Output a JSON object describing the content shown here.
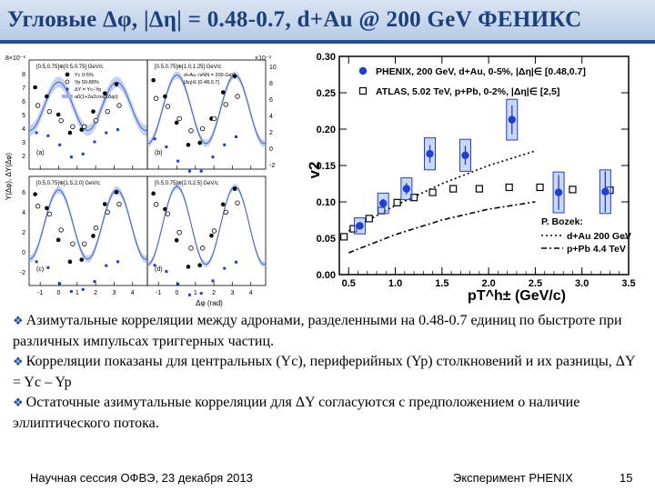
{
  "slide": {
    "title": "Угловые Δφ, |Δη| = 0.48-0.7, d+Au @ 200 GeV ФЕНИКС",
    "bullets": [
      "Азимутальные корреляции между адронами, разделенными на 0.48-0.7 единиц по быстроте при различных импульсах триггерных частиц.",
      "Корреляции показаны для центральных (Yc), периферийных (Yp) столкновений и их разницы, ΔY = Yc – Yp",
      "Остаточные азимутальные корреляции для ΔY согласуются с предположением о наличие эллиптического потока."
    ],
    "footer": {
      "left": "Научная сессия ОФВЭ, 23 декабря 2013",
      "center": "Эксперимент PHENIX",
      "page": "15"
    }
  },
  "chart_data": [
    {
      "type": "scatter",
      "description_panel": "azimuthal correlations (a)-(d)",
      "xlabel": "Δφ (rad)",
      "ylabel": "Y(Δφ), ΔY(Δφ)",
      "y_scale_label": "8×10⁻³",
      "y_scale_label_right": "×10⁻³",
      "legend": [
        "Yc 0-5%",
        "Yp 50-88%",
        "ΔY = Yc−Yp",
        "a0(1+2a2cos(2Δφ))"
      ],
      "header_labels": [
        "[0.5,0.75]⊗[0.5,0.75] GeV/c",
        "[0.5,0.75]⊗[1.0,1.25] GeV/c",
        "[0.5,0.75]⊗[1.5,2.0] GeV/c",
        "[0.5,0.75]⊗[2.0,2.5] GeV/c"
      ],
      "panel_letters": [
        "(a)",
        "(b)",
        "(c)",
        "(d)"
      ],
      "extra_labels": [
        "d+Au √sNN = 200 GeV",
        "|Δη|∈ [0.48,0.7]"
      ],
      "x_ticks": [
        "-1",
        "0",
        "1",
        "2",
        "3",
        "4"
      ],
      "y_ticks_top_left": [
        "8",
        "7",
        "6",
        "5",
        "4",
        "3",
        "2"
      ],
      "y_ticks_bottom_left": [
        "6",
        "4",
        "2",
        "0",
        "-2"
      ],
      "y_ticks_right": [
        "10",
        "8",
        "6",
        "4",
        "2",
        "0",
        "-2"
      ],
      "subpanels": [
        {
          "id": "a",
          "yc": [
            5.0,
            4.7,
            4.1,
            3.5,
            3.6,
            4.2,
            4.8,
            5.1
          ],
          "yp": [
            4.4,
            4.2,
            3.9,
            3.7,
            3.7,
            3.9,
            4.2,
            4.4
          ]
        },
        {
          "id": "b",
          "yc": [
            7.8,
            7.0,
            5.7,
            4.6,
            4.7,
            5.9,
            7.2,
            8.0
          ],
          "yp": [
            6.9,
            6.5,
            5.9,
            5.3,
            5.4,
            5.9,
            6.6,
            7.0
          ]
        },
        {
          "id": "c",
          "yc": [
            4.6,
            3.9,
            2.3,
            1.2,
            1.3,
            2.5,
            4.1,
            4.7
          ],
          "yp": [
            4.0,
            3.6,
            2.8,
            2.1,
            2.1,
            2.9,
            3.7,
            4.1
          ]
        },
        {
          "id": "d",
          "yc": [
            6.5,
            5.5,
            3.5,
            1.8,
            1.9,
            3.8,
            5.8,
            6.8
          ],
          "yp": [
            5.8,
            5.2,
            4.0,
            3.0,
            3.0,
            4.1,
            5.3,
            5.9
          ]
        }
      ]
    },
    {
      "type": "scatter",
      "xlabel": "pT^h± (GeV/c)",
      "ylabel": "v2",
      "xlim": [
        0.4,
        3.5
      ],
      "ylim": [
        0.0,
        0.3
      ],
      "x_ticks": [
        "0.5",
        "1.0",
        "1.5",
        "2.0",
        "2.5",
        "3.0",
        "3.5"
      ],
      "y_ticks": [
        "0.00",
        "0.05",
        "0.10",
        "0.15",
        "0.20",
        "0.25",
        "0.30"
      ],
      "legend": [
        "PHENIX, 200 GeV, d+Au, 0-5%, |Δη|∈ [0.48,0.7]",
        "ATLAS, 5.02 TeV, p+Pb, 0-2%, |Δη|∈ [2,5]"
      ],
      "theory_title": "P. Bozek:",
      "theory_legend": [
        "d+Au 200 GeV",
        "p+Pb 4.4 TeV"
      ],
      "series": [
        {
          "name": "PHENIX, 200 GeV, d+Au, 0-5%, |Δη|∈ [0.48,0.7]",
          "marker": "filled-circle",
          "x": [
            0.62,
            0.87,
            1.12,
            1.37,
            1.75,
            2.25,
            2.75,
            3.25
          ],
          "y": [
            0.067,
            0.098,
            0.118,
            0.166,
            0.164,
            0.213,
            0.113,
            0.114
          ],
          "stat_err": [
            0.005,
            0.006,
            0.008,
            0.012,
            0.013,
            0.02,
            0.024,
            0.028
          ],
          "sys_err": [
            0.011,
            0.014,
            0.015,
            0.022,
            0.022,
            0.028,
            0.028,
            0.03
          ]
        },
        {
          "name": "ATLAS, 5.02 TeV, p+Pb, 0-2%, |Δη|∈ [2,5]",
          "marker": "open-square",
          "x": [
            0.45,
            0.55,
            0.72,
            0.85,
            1.02,
            1.2,
            1.4,
            1.62,
            1.9,
            2.22,
            2.55,
            2.9,
            3.3
          ],
          "y": [
            0.052,
            0.063,
            0.077,
            0.088,
            0.099,
            0.106,
            0.113,
            0.118,
            0.118,
            0.12,
            0.12,
            0.117,
            0.116
          ]
        },
        {
          "name": "d+Au 200 GeV",
          "style": "dotted",
          "x": [
            0.5,
            1.0,
            1.5,
            2.0,
            2.5
          ],
          "y": [
            0.06,
            0.095,
            0.125,
            0.15,
            0.17
          ]
        },
        {
          "name": "p+Pb 4.4 TeV",
          "style": "dash-dot",
          "x": [
            0.5,
            1.0,
            1.5,
            2.0,
            2.5
          ],
          "y": [
            0.03,
            0.055,
            0.075,
            0.09,
            0.1
          ]
        }
      ]
    }
  ],
  "colors": {
    "title_text": "#1b3f7a",
    "title_bar": "#c9d8ee",
    "rule": "#1f4e96",
    "phenix_blue": "#1f3fcf",
    "sys_box": "#8fa6e8",
    "band": "#9eb3e6"
  }
}
